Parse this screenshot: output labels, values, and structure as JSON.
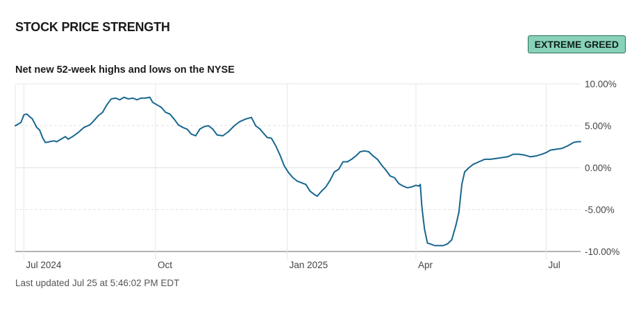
{
  "header": {
    "title": "STOCK PRICE STRENGTH",
    "badge": "EXTREME GREED",
    "badge_color": "#88d2b8",
    "subtitle": "Net new 52-week highs and lows on the NYSE",
    "last_updated": "Last updated Jul 25 at 5:46:02 PM EDT"
  },
  "chart_data": {
    "type": "line",
    "title": "Net new 52-week highs and lows on the NYSE",
    "ylim": [
      -10,
      10
    ],
    "y_ticks": [
      {
        "value": 10,
        "label": "10.00%"
      },
      {
        "value": 5,
        "label": "5.00%"
      },
      {
        "value": 0,
        "label": "0.00%"
      },
      {
        "value": -5,
        "label": "-5.00%"
      },
      {
        "value": -10,
        "label": "-10.00%"
      }
    ],
    "x_range": [
      "2024-06-25",
      "2025-07-25"
    ],
    "x_ticks": [
      {
        "date": "2024-07-01",
        "label": "Jul 2024"
      },
      {
        "date": "2024-10-01",
        "label": "Oct"
      },
      {
        "date": "2025-01-01",
        "label": "Jan 2025"
      },
      {
        "date": "2025-04-01",
        "label": "Apr"
      },
      {
        "date": "2025-07-01",
        "label": "Jul"
      }
    ],
    "grid": true,
    "line_color": "#17668f",
    "series": [
      {
        "values": [
          [
            "2024-06-25",
            5.0
          ],
          [
            "2024-06-27",
            5.2
          ],
          [
            "2024-06-29",
            5.4
          ],
          [
            "2024-07-01",
            6.3
          ],
          [
            "2024-07-03",
            6.4
          ],
          [
            "2024-07-05",
            6.1
          ],
          [
            "2024-07-07",
            5.8
          ],
          [
            "2024-07-10",
            4.8
          ],
          [
            "2024-07-12",
            4.5
          ],
          [
            "2024-07-14",
            3.6
          ],
          [
            "2024-07-16",
            3.0
          ],
          [
            "2024-07-19",
            3.1
          ],
          [
            "2024-07-22",
            3.2
          ],
          [
            "2024-07-24",
            3.1
          ],
          [
            "2024-07-27",
            3.4
          ],
          [
            "2024-07-30",
            3.7
          ],
          [
            "2024-08-01",
            3.4
          ],
          [
            "2024-08-04",
            3.7
          ],
          [
            "2024-08-08",
            4.2
          ],
          [
            "2024-08-12",
            4.8
          ],
          [
            "2024-08-16",
            5.1
          ],
          [
            "2024-08-19",
            5.6
          ],
          [
            "2024-08-22",
            6.2
          ],
          [
            "2024-08-25",
            6.6
          ],
          [
            "2024-08-28",
            7.5
          ],
          [
            "2024-08-31",
            8.2
          ],
          [
            "2024-09-03",
            8.3
          ],
          [
            "2024-09-06",
            8.1
          ],
          [
            "2024-09-09",
            8.4
          ],
          [
            "2024-09-12",
            8.2
          ],
          [
            "2024-09-15",
            8.3
          ],
          [
            "2024-09-18",
            8.1
          ],
          [
            "2024-09-21",
            8.3
          ],
          [
            "2024-09-24",
            8.3
          ],
          [
            "2024-09-27",
            8.4
          ],
          [
            "2024-09-29",
            7.8
          ],
          [
            "2024-10-02",
            7.5
          ],
          [
            "2024-10-05",
            7.2
          ],
          [
            "2024-10-08",
            6.6
          ],
          [
            "2024-10-11",
            6.4
          ],
          [
            "2024-10-14",
            5.8
          ],
          [
            "2024-10-17",
            5.1
          ],
          [
            "2024-10-20",
            4.8
          ],
          [
            "2024-10-23",
            4.6
          ],
          [
            "2024-10-26",
            4.0
          ],
          [
            "2024-10-29",
            3.8
          ],
          [
            "2024-11-01",
            4.6
          ],
          [
            "2024-11-04",
            4.9
          ],
          [
            "2024-11-07",
            5.0
          ],
          [
            "2024-11-10",
            4.6
          ],
          [
            "2024-11-13",
            3.9
          ],
          [
            "2024-11-17",
            3.8
          ],
          [
            "2024-11-21",
            4.3
          ],
          [
            "2024-11-25",
            5.0
          ],
          [
            "2024-11-29",
            5.5
          ],
          [
            "2024-12-03",
            5.8
          ],
          [
            "2024-12-07",
            6.0
          ],
          [
            "2024-12-10",
            5.0
          ],
          [
            "2024-12-13",
            4.6
          ],
          [
            "2024-12-16",
            4.0
          ],
          [
            "2024-12-18",
            3.6
          ],
          [
            "2024-12-21",
            3.5
          ],
          [
            "2024-12-24",
            2.6
          ],
          [
            "2024-12-27",
            1.5
          ],
          [
            "2024-12-30",
            0.2
          ],
          [
            "2025-01-02",
            -0.6
          ],
          [
            "2025-01-05",
            -1.2
          ],
          [
            "2025-01-08",
            -1.6
          ],
          [
            "2025-01-11",
            -1.8
          ],
          [
            "2025-01-14",
            -2.0
          ],
          [
            "2025-01-17",
            -2.8
          ],
          [
            "2025-01-20",
            -3.2
          ],
          [
            "2025-01-22",
            -3.4
          ],
          [
            "2025-01-25",
            -2.8
          ],
          [
            "2025-01-28",
            -2.3
          ],
          [
            "2025-01-31",
            -1.5
          ],
          [
            "2025-02-03",
            -0.5
          ],
          [
            "2025-02-06",
            -0.2
          ],
          [
            "2025-02-09",
            0.7
          ],
          [
            "2025-02-12",
            0.7
          ],
          [
            "2025-02-15",
            1.0
          ],
          [
            "2025-02-18",
            1.4
          ],
          [
            "2025-02-21",
            1.9
          ],
          [
            "2025-02-24",
            2.0
          ],
          [
            "2025-02-27",
            1.9
          ],
          [
            "2025-03-02",
            1.4
          ],
          [
            "2025-03-05",
            1.0
          ],
          [
            "2025-03-08",
            0.3
          ],
          [
            "2025-03-11",
            -0.3
          ],
          [
            "2025-03-14",
            -1.0
          ],
          [
            "2025-03-17",
            -1.2
          ],
          [
            "2025-03-20",
            -1.9
          ],
          [
            "2025-03-23",
            -2.2
          ],
          [
            "2025-03-26",
            -2.4
          ],
          [
            "2025-03-29",
            -2.3
          ],
          [
            "2025-04-01",
            -2.1
          ],
          [
            "2025-04-03",
            -2.2
          ],
          [
            "2025-04-04",
            -2.0
          ],
          [
            "2025-04-05",
            -4.5
          ],
          [
            "2025-04-06",
            -6.0
          ],
          [
            "2025-04-07",
            -7.4
          ],
          [
            "2025-04-09",
            -9.0
          ],
          [
            "2025-04-11",
            -9.1
          ],
          [
            "2025-04-14",
            -9.3
          ],
          [
            "2025-04-17",
            -9.3
          ],
          [
            "2025-04-20",
            -9.3
          ],
          [
            "2025-04-23",
            -9.1
          ],
          [
            "2025-04-26",
            -8.6
          ],
          [
            "2025-04-29",
            -6.8
          ],
          [
            "2025-05-01",
            -5.3
          ],
          [
            "2025-05-03",
            -2.0
          ],
          [
            "2025-05-05",
            -0.5
          ],
          [
            "2025-05-08",
            0.0
          ],
          [
            "2025-05-11",
            0.4
          ],
          [
            "2025-05-15",
            0.7
          ],
          [
            "2025-05-19",
            1.0
          ],
          [
            "2025-05-23",
            1.0
          ],
          [
            "2025-05-27",
            1.1
          ],
          [
            "2025-05-31",
            1.2
          ],
          [
            "2025-06-04",
            1.3
          ],
          [
            "2025-06-08",
            1.6
          ],
          [
            "2025-06-12",
            1.6
          ],
          [
            "2025-06-16",
            1.5
          ],
          [
            "2025-06-20",
            1.3
          ],
          [
            "2025-06-24",
            1.4
          ],
          [
            "2025-06-28",
            1.6
          ],
          [
            "2025-07-01",
            1.8
          ],
          [
            "2025-07-04",
            2.1
          ],
          [
            "2025-07-08",
            2.2
          ],
          [
            "2025-07-12",
            2.3
          ],
          [
            "2025-07-16",
            2.6
          ],
          [
            "2025-07-20",
            3.0
          ],
          [
            "2025-07-23",
            3.1
          ],
          [
            "2025-07-25",
            3.1
          ]
        ]
      }
    ]
  }
}
